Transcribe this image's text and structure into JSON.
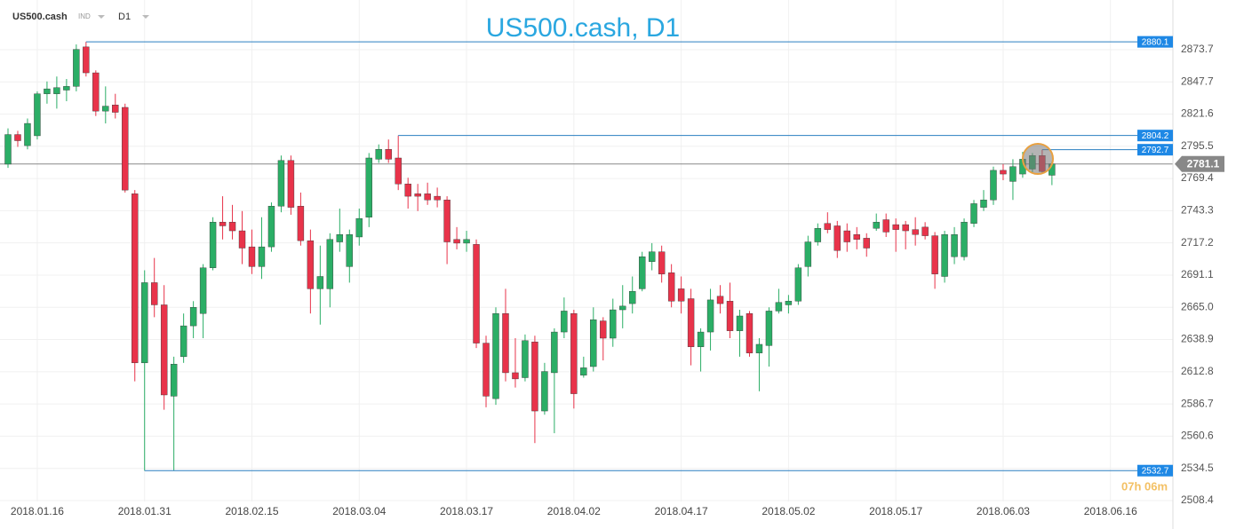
{
  "toolbar": {
    "symbol": "US500.cash",
    "market": "IND",
    "timeframe": "D1"
  },
  "chart_data": {
    "type": "candlestick",
    "title": "US500.cash, D1",
    "countdown": "07h 06m",
    "up_color": "#2bae66",
    "down_color": "#e8334a",
    "level_color": "#1e88e5",
    "grid": true,
    "categories": [
      null,
      null,
      null,
      "2018.01.16",
      null,
      null,
      null,
      null,
      null,
      null,
      null,
      null,
      null,
      null,
      "2018.01.31",
      null,
      null,
      null,
      null,
      null,
      null,
      null,
      null,
      null,
      null,
      "2018.02.15",
      null,
      null,
      null,
      null,
      null,
      null,
      null,
      null,
      null,
      null,
      "2018.03.04",
      null,
      null,
      null,
      null,
      null,
      null,
      null,
      null,
      null,
      null,
      "2018.03.17",
      null,
      null,
      null,
      null,
      null,
      null,
      null,
      null,
      null,
      null,
      "2018.04.02",
      null,
      null,
      null,
      null,
      null,
      null,
      null,
      null,
      null,
      null,
      "2018.04.17",
      null,
      null,
      null,
      null,
      null,
      null,
      null,
      null,
      null,
      null,
      "2018.05.02",
      null,
      null,
      null,
      null,
      null,
      null,
      null,
      null,
      null,
      null,
      "2018.05.17",
      null,
      null,
      null,
      null,
      null,
      null,
      null,
      null,
      null,
      null,
      "2018.06.03",
      null,
      null,
      null,
      null,
      null,
      null,
      null,
      null,
      null,
      null,
      "2018.06.16"
    ],
    "open": [
      2781,
      2805,
      2796,
      2804,
      2838,
      2838,
      2841,
      2844,
      2876,
      2855,
      2824,
      2829,
      2827,
      2757,
      2620,
      2685,
      2667,
      2593,
      2625,
      2650,
      2660,
      2697,
      2734,
      2734,
      2727,
      2714,
      2698,
      2714,
      2747,
      2784,
      2747,
      2719,
      2680,
      2680,
      2718,
      2698,
      2722,
      2738,
      2785,
      2793,
      2786,
      2765,
      2757,
      2757,
      2755,
      2752,
      2720,
      2717,
      2716,
      2636,
      2591,
      2660,
      2612,
      2608,
      2637,
      2581,
      2612,
      2645,
      2660,
      2610,
      2617,
      2654,
      2640,
      2663,
      2668,
      2680,
      2702,
      2710,
      2693,
      2680,
      2672,
      2633,
      2645,
      2674,
      2670,
      2646,
      2660,
      2628,
      2634,
      2662,
      2667,
      2670,
      2698,
      2718,
      2733,
      2731,
      2727,
      2724,
      2721,
      2729,
      2736,
      2732,
      2732,
      2728,
      2730,
      2723,
      2690,
      2706,
      2706,
      2733,
      2746,
      2752,
      2776,
      2767,
      2773,
      2777,
      2788,
      2772,
      null,
      null,
      null,
      null,
      null,
      null
    ],
    "high": [
      2810,
      2808,
      2818,
      2840,
      2848,
      2852,
      2850,
      2878,
      2880.1,
      2857,
      2844,
      2838,
      2830,
      2760,
      2695,
      2705,
      2683,
      2625,
      2660,
      2670,
      2700,
      2738,
      2755,
      2748,
      2743,
      2728,
      2738,
      2750,
      2788,
      2788,
      2758,
      2728,
      2715,
      2725,
      2745,
      2728,
      2745,
      2790,
      2797,
      2801,
      2804.2,
      2770,
      2765,
      2766,
      2762,
      2755,
      2730,
      2727,
      2720,
      2642,
      2665,
      2680,
      2640,
      2643,
      2642,
      2620,
      2648,
      2673,
      2663,
      2625,
      2665,
      2657,
      2672,
      2683,
      2690,
      2710,
      2717,
      2715,
      2700,
      2690,
      2680,
      2648,
      2680,
      2683,
      2685,
      2663,
      2662,
      2640,
      2665,
      2680,
      2675,
      2700,
      2723,
      2733,
      2742,
      2735,
      2733,
      2730,
      2725,
      2741,
      2741,
      2737,
      2735,
      2738,
      2734,
      2726,
      2727,
      2730,
      2737,
      2752,
      2760,
      2779,
      2781,
      2785,
      2791,
      2790,
      2792.7,
      2783,
      null,
      null,
      null,
      null,
      null,
      null
    ],
    "low": [
      2778,
      2795,
      2793,
      2801,
      2830,
      2826,
      2832,
      2840,
      2852,
      2820,
      2814,
      2818,
      2758,
      2605,
      2532.7,
      2657,
      2582,
      2532.7,
      2620,
      2640,
      2640,
      2695,
      2720,
      2720,
      2700,
      2692,
      2688,
      2710,
      2742,
      2740,
      2715,
      2660,
      2651,
      2665,
      2710,
      2685,
      2715,
      2730,
      2782,
      2782,
      2760,
      2745,
      2743,
      2748,
      2746,
      2700,
      2712,
      2710,
      2632,
      2584,
      2586,
      2605,
      2600,
      2605,
      2555,
      2578,
      2563,
      2640,
      2583,
      2608,
      2613,
      2622,
      2633,
      2648,
      2660,
      2678,
      2695,
      2685,
      2665,
      2660,
      2618,
      2613,
      2630,
      2660,
      2640,
      2625,
      2625,
      2597,
      2617,
      2660,
      2660,
      2667,
      2690,
      2715,
      2725,
      2705,
      2710,
      2712,
      2706,
      2727,
      2722,
      2710,
      2712,
      2715,
      2720,
      2680,
      2685,
      2700,
      2703,
      2730,
      2743,
      2748,
      2768,
      2752,
      2770,
      2774,
      2773,
      2764,
      null,
      null,
      null,
      null,
      null,
      null
    ],
    "close": [
      2805,
      2800,
      2814,
      2838,
      2842,
      2843,
      2844,
      2874,
      2855,
      2824,
      2828,
      2823,
      2760,
      2620,
      2685,
      2667,
      2594,
      2619,
      2650,
      2665,
      2697,
      2734,
      2731,
      2727,
      2713,
      2698,
      2714,
      2747,
      2784,
      2746,
      2719,
      2680,
      2690,
      2720,
      2724,
      2724,
      2737,
      2786,
      2793,
      2785,
      2765,
      2755,
      2755,
      2752,
      2752,
      2718,
      2717,
      2720,
      2636,
      2593,
      2660,
      2612,
      2607,
      2638,
      2581,
      2613,
      2645,
      2662,
      2595,
      2616,
      2655,
      2640,
      2663,
      2666,
      2678,
      2706,
      2710,
      2692,
      2670,
      2670,
      2633,
      2645,
      2671,
      2668,
      2646,
      2658,
      2628,
      2635,
      2662,
      2669,
      2670,
      2697,
      2718,
      2729,
      2728,
      2711,
      2718,
      2720,
      2713,
      2734,
      2726,
      2728,
      2727,
      2724,
      2723,
      2692,
      2724,
      2724,
      2734,
      2749,
      2752,
      2776,
      2773,
      2779,
      2785,
      2788,
      2775,
      2781.1,
      null,
      null,
      null,
      null,
      null,
      null
    ],
    "last_price": 2781.1,
    "levels": [
      2880.1,
      2804.2,
      2792.7,
      2532.7
    ],
    "ylim": [
      2496.9,
      2914.0
    ],
    "yticks": [
      2873.7,
      2847.7,
      2821.6,
      2795.5,
      2769.4,
      2743.3,
      2717.2,
      2691.1,
      {
        "value": 2665,
        "label": "2665.0"
      },
      2638.9,
      2612.8,
      2586.7,
      2560.6,
      2534.5,
      2508.4
    ]
  }
}
